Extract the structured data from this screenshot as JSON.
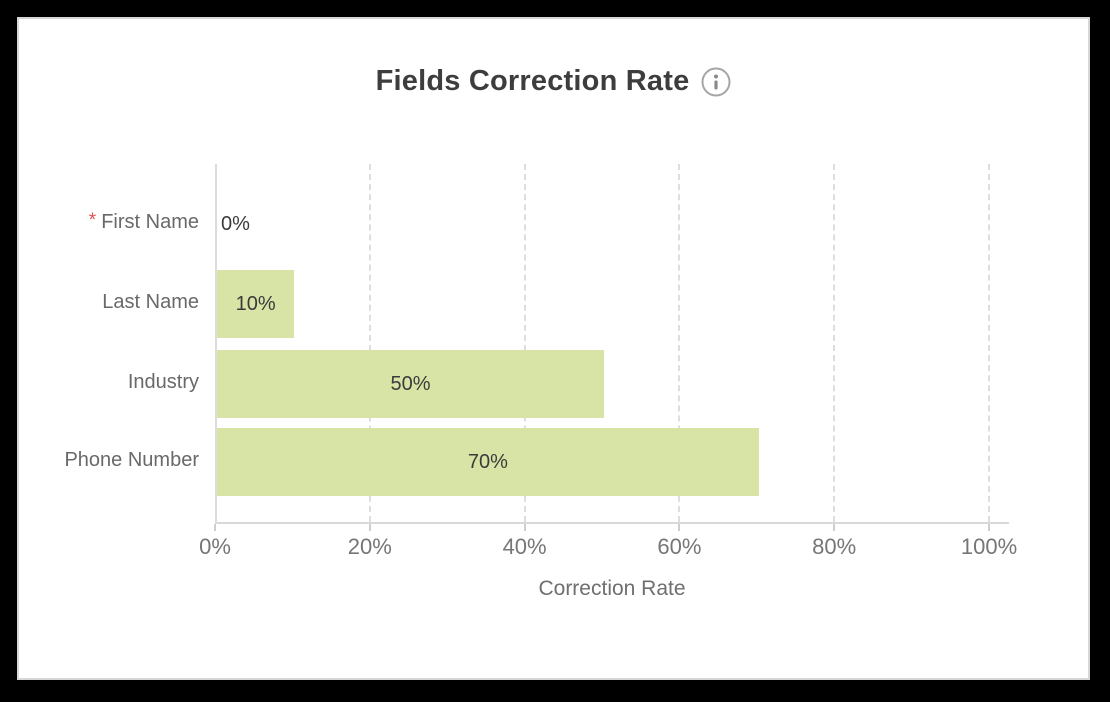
{
  "header": {
    "title": "Fields Correction Rate",
    "info_icon": "info-icon"
  },
  "colors": {
    "bar_fill": "#d8e3a6",
    "required_asterisk": "#e0534e",
    "title_text": "#3d3d3d",
    "axis_text": "#767676",
    "label_text": "#696969",
    "value_text": "#3b3b3b",
    "gridline": "#dedede",
    "axis_line": "#d9d9d9",
    "frame": "#000000",
    "card_background": "#ffffff"
  },
  "chart_data": {
    "type": "bar",
    "orientation": "horizontal",
    "title": "Fields Correction Rate",
    "categories": [
      "First Name",
      "Last Name",
      "Industry",
      "Phone Number"
    ],
    "required_flags": [
      true,
      false,
      false,
      false
    ],
    "values": [
      0,
      10,
      50,
      70
    ],
    "value_labels": [
      "0%",
      "10%",
      "50%",
      "70%"
    ],
    "xlabel": "Correction Rate",
    "ylabel": "",
    "xlim": [
      0,
      100
    ],
    "x_tick_values": [
      0,
      20,
      40,
      60,
      80,
      100
    ],
    "x_ticks": [
      "0%",
      "20%",
      "40%",
      "60%",
      "80%",
      "100%"
    ],
    "grid": "vertical-dashed",
    "legend": "none",
    "bar_color": "#d8e3a6"
  }
}
